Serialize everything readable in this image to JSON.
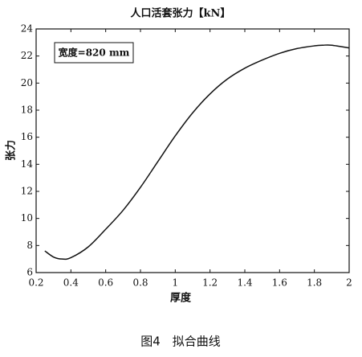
{
  "chart_data": {
    "type": "line",
    "title": "人口活套张力【kN】",
    "x_label": "厚度",
    "y_label": "张力",
    "annotation": "宽度=820 mm",
    "caption": "图4　拟合曲线",
    "x": [
      0.25,
      0.3,
      0.35,
      0.4,
      0.5,
      0.6,
      0.7,
      0.8,
      0.9,
      1.0,
      1.1,
      1.2,
      1.3,
      1.4,
      1.5,
      1.6,
      1.7,
      1.8,
      1.85,
      1.9,
      2.0
    ],
    "series": [
      {
        "color": "#111111",
        "values": [
          7.6,
          7.15,
          7.0,
          7.1,
          7.9,
          9.2,
          10.6,
          12.3,
          14.2,
          16.1,
          17.8,
          19.2,
          20.3,
          21.1,
          21.7,
          22.2,
          22.55,
          22.75,
          22.8,
          22.8,
          22.6
        ]
      }
    ],
    "xlim": [
      0.2,
      2
    ],
    "xticks": [
      0.2,
      0.4,
      0.6,
      0.8,
      1,
      1.2,
      1.4,
      1.6,
      1.8,
      2
    ],
    "ylim": [
      6,
      24
    ],
    "yticks": [
      6,
      8,
      10,
      12,
      14,
      16,
      18,
      20,
      22,
      24
    ]
  }
}
